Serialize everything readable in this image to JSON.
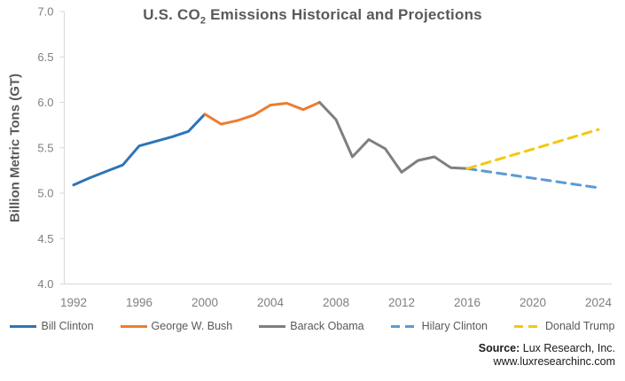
{
  "title": {
    "prefix": "U.S. CO",
    "sub": "2",
    "suffix": " Emissions Historical and Projections"
  },
  "source": {
    "label": "Source:",
    "company": "Lux Research, Inc.",
    "url": "www.luxresearchinc.com"
  },
  "colors": {
    "title_text": "#595959",
    "axis_line": "#D9D9D9",
    "tick_label": "#7F7F7F",
    "legend_text": "#595959",
    "source_text": "#1A1A1A"
  },
  "chart_data": {
    "type": "line",
    "title": "U.S. CO2 Emissions Historical and Projections",
    "xlabel": "",
    "ylabel": "Billion Metric Tons (GT)",
    "xlim": [
      1992,
      2024
    ],
    "ylim": [
      4.0,
      7.0
    ],
    "xticks": [
      1992,
      1996,
      2000,
      2004,
      2008,
      2012,
      2016,
      2020,
      2024
    ],
    "yticks": [
      7.0,
      6.5,
      6.0,
      5.5,
      5.0,
      4.5,
      4.0
    ],
    "grid": false,
    "legend_position": "bottom",
    "series": [
      {
        "name": "Bill Clinton",
        "color": "#2E75B6",
        "dash": false,
        "points": [
          [
            1992,
            5.09
          ],
          [
            1993,
            5.17
          ],
          [
            1994,
            5.24
          ],
          [
            1995,
            5.31
          ],
          [
            1996,
            5.52
          ],
          [
            1997,
            5.57
          ],
          [
            1998,
            5.62
          ],
          [
            1999,
            5.68
          ],
          [
            2000,
            5.87
          ]
        ]
      },
      {
        "name": "George W. Bush",
        "color": "#ED7D31",
        "dash": false,
        "points": [
          [
            2000,
            5.87
          ],
          [
            2001,
            5.76
          ],
          [
            2002,
            5.8
          ],
          [
            2003,
            5.86
          ],
          [
            2004,
            5.97
          ],
          [
            2005,
            5.99
          ],
          [
            2006,
            5.92
          ],
          [
            2007,
            6.0
          ]
        ]
      },
      {
        "name": "Barack Obama",
        "color": "#7F7F7F",
        "dash": false,
        "points": [
          [
            2007,
            6.0
          ],
          [
            2008,
            5.81
          ],
          [
            2009,
            5.4
          ],
          [
            2010,
            5.59
          ],
          [
            2011,
            5.49
          ],
          [
            2012,
            5.23
          ],
          [
            2013,
            5.36
          ],
          [
            2014,
            5.4
          ],
          [
            2015,
            5.28
          ],
          [
            2016,
            5.27
          ]
        ]
      },
      {
        "name": "Hilary Clinton",
        "color": "#5B9BD5",
        "dash": true,
        "points": [
          [
            2016,
            5.27
          ],
          [
            2024,
            5.06
          ]
        ]
      },
      {
        "name": "Donald Trump",
        "color": "#F2C811",
        "dash": true,
        "points": [
          [
            2016,
            5.27
          ],
          [
            2024,
            5.7
          ]
        ]
      }
    ]
  }
}
